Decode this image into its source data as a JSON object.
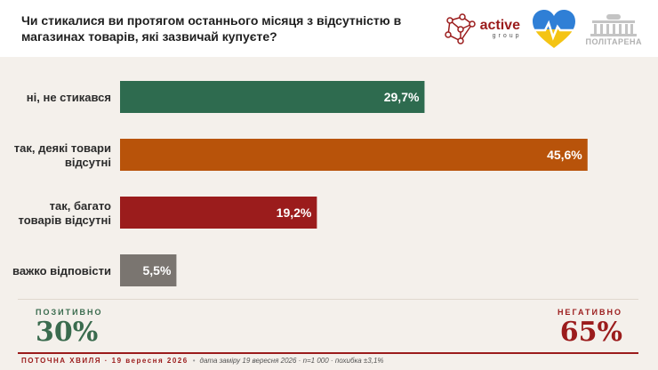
{
  "header": {
    "question": "Чи стикалися ви протягом останнього місяця з відсутністю в магазинах товарів, які зазвичай купуєте?",
    "logo_active": "active",
    "logo_group": "group",
    "logo_politarena": "ПОЛІТАРЕНА"
  },
  "chart_data": {
    "type": "bar",
    "orientation": "horizontal",
    "categories": [
      "ні, не стикався",
      "так, деякі товари відсутні",
      "так, багато товарів відсутні",
      "важко відповісти"
    ],
    "category_lines": [
      [
        "ні, не стикався"
      ],
      [
        "так, деякі товари",
        "відсутні"
      ],
      [
        "так, багато",
        "товарів відсутні"
      ],
      [
        "важко відповісти"
      ]
    ],
    "values": [
      29.7,
      45.6,
      19.2,
      5.5
    ],
    "value_labels": [
      "29,7%",
      "45,6%",
      "19,2%",
      "5,5%"
    ],
    "colors": [
      "#2e6b4f",
      "#b8530a",
      "#9b1c1c",
      "#7a7570"
    ],
    "xlim": [
      0,
      55
    ]
  },
  "summary": {
    "positive_label": "ПОЗИТИВНО",
    "positive_value": "30%",
    "negative_label": "НЕГАТИВНО",
    "negative_value": "65%"
  },
  "footer": {
    "wave": "ПОТОЧНА ХВИЛЯ · 19 вересня 2026",
    "separator": "•",
    "meta": "дата заміру 19 вересня 2026 · n=1 000 · похибка ±3,1%"
  }
}
